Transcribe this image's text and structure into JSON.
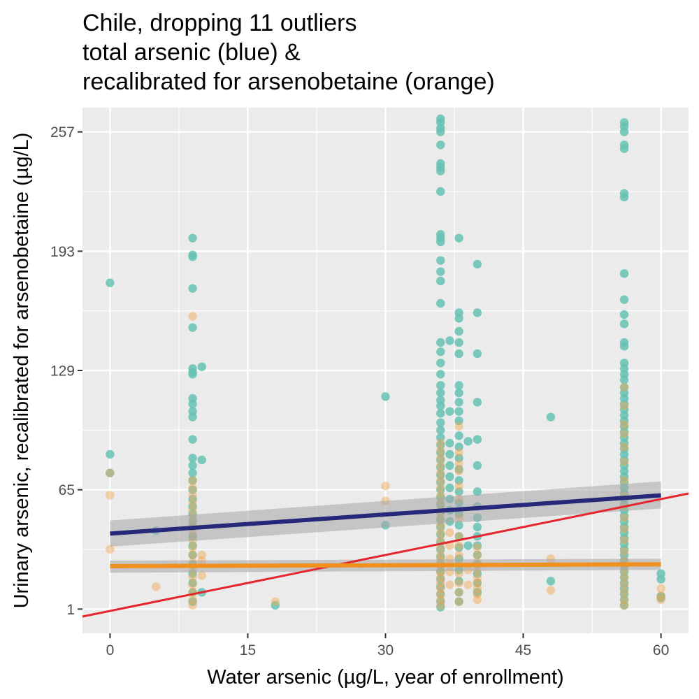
{
  "chart_data": {
    "type": "scatter",
    "title": [
      "Chile, dropping 11 outliers",
      "total arsenic (blue) &",
      "recalibrated for arsenobetaine (orange)"
    ],
    "xlabel": "Water arsenic (µg/L, year of enrollment)",
    "ylabel": "Urinary arsenic, recalibrated for arsenobetaine (µg/L)",
    "xlim": [
      -3,
      63
    ],
    "ylim": [
      -12,
      270
    ],
    "x_ticks": [
      0,
      15,
      30,
      45,
      60
    ],
    "y_ticks": [
      1,
      65,
      129,
      193,
      257
    ],
    "grid": true,
    "colors": {
      "panel": "#ebebeb",
      "grid": "#ffffff",
      "total": "#66c2b4",
      "recalibrated": "#f5a34e",
      "total_fit": "#26287a",
      "recalibrated_fit": "#f0901e",
      "ci": "#a6a6a6",
      "identity": "#e4262d"
    },
    "series": [
      {
        "name": "total arsenic",
        "points": [
          [
            0,
            176
          ],
          [
            0,
            84
          ],
          [
            0,
            74
          ],
          [
            5,
            43
          ],
          [
            9,
            200
          ],
          [
            9,
            191
          ],
          [
            9,
            190
          ],
          [
            9,
            173
          ],
          [
            9,
            152
          ],
          [
            9,
            130
          ],
          [
            9,
            128
          ],
          [
            9,
            127
          ],
          [
            9,
            114
          ],
          [
            9,
            111
          ],
          [
            9,
            107
          ],
          [
            9,
            104
          ],
          [
            9,
            92
          ],
          [
            9,
            82
          ],
          [
            9,
            78
          ],
          [
            9,
            74
          ],
          [
            9,
            70
          ],
          [
            9,
            65
          ],
          [
            9,
            60
          ],
          [
            9,
            56
          ],
          [
            9,
            52
          ],
          [
            9,
            48
          ],
          [
            9,
            45
          ],
          [
            9,
            40
          ],
          [
            9,
            35
          ],
          [
            9,
            30
          ],
          [
            9,
            25
          ],
          [
            9,
            20
          ],
          [
            9,
            15
          ],
          [
            9,
            10
          ],
          [
            9,
            5
          ],
          [
            10,
            131
          ],
          [
            10,
            81
          ],
          [
            10,
            10
          ],
          [
            18,
            3
          ],
          [
            30,
            115
          ],
          [
            30,
            46
          ],
          [
            36,
            264
          ],
          [
            36,
            262
          ],
          [
            36,
            259
          ],
          [
            36,
            257
          ],
          [
            36,
            250
          ],
          [
            36,
            240
          ],
          [
            36,
            238
          ],
          [
            36,
            236
          ],
          [
            36,
            225
          ],
          [
            36,
            202
          ],
          [
            36,
            200
          ],
          [
            36,
            198
          ],
          [
            36,
            188
          ],
          [
            36,
            182
          ],
          [
            36,
            177
          ],
          [
            36,
            165
          ],
          [
            36,
            144
          ],
          [
            36,
            139
          ],
          [
            36,
            133
          ],
          [
            36,
            127
          ],
          [
            36,
            121
          ],
          [
            36,
            117
          ],
          [
            36,
            113
          ],
          [
            36,
            110
          ],
          [
            36,
            106
          ],
          [
            36,
            101
          ],
          [
            36,
            97
          ],
          [
            36,
            93
          ],
          [
            36,
            89
          ],
          [
            36,
            85
          ],
          [
            36,
            81
          ],
          [
            36,
            77
          ],
          [
            36,
            73
          ],
          [
            36,
            69
          ],
          [
            36,
            65
          ],
          [
            36,
            61
          ],
          [
            36,
            57
          ],
          [
            36,
            53
          ],
          [
            36,
            49
          ],
          [
            36,
            45
          ],
          [
            36,
            41
          ],
          [
            36,
            37
          ],
          [
            36,
            33
          ],
          [
            36,
            29
          ],
          [
            36,
            25
          ],
          [
            36,
            21
          ],
          [
            36,
            17
          ],
          [
            36,
            13
          ],
          [
            36,
            9
          ],
          [
            36,
            5
          ],
          [
            36,
            2
          ],
          [
            37,
            145
          ],
          [
            37,
            107
          ],
          [
            37,
            90
          ],
          [
            37,
            84
          ],
          [
            37,
            78
          ],
          [
            37,
            72
          ],
          [
            37,
            66
          ],
          [
            37,
            60
          ],
          [
            37,
            54
          ],
          [
            37,
            48
          ],
          [
            38,
            200
          ],
          [
            38,
            160
          ],
          [
            38,
            157
          ],
          [
            38,
            150
          ],
          [
            38,
            144
          ],
          [
            38,
            138
          ],
          [
            38,
            121
          ],
          [
            38,
            117
          ],
          [
            38,
            112
          ],
          [
            38,
            107
          ],
          [
            38,
            102
          ],
          [
            38,
            94
          ],
          [
            38,
            88
          ],
          [
            38,
            82
          ],
          [
            38,
            76
          ],
          [
            38,
            70
          ],
          [
            38,
            64
          ],
          [
            38,
            58
          ],
          [
            38,
            52
          ],
          [
            38,
            46
          ],
          [
            38,
            40
          ],
          [
            38,
            34
          ],
          [
            38,
            28
          ],
          [
            38,
            22
          ],
          [
            38,
            16
          ],
          [
            38,
            10
          ],
          [
            38,
            5
          ],
          [
            39,
            91
          ],
          [
            39,
            35
          ],
          [
            40,
            186
          ],
          [
            40,
            160
          ],
          [
            40,
            138
          ],
          [
            40,
            112
          ],
          [
            40,
            92
          ],
          [
            40,
            78
          ],
          [
            40,
            64
          ],
          [
            40,
            56
          ],
          [
            40,
            50
          ],
          [
            40,
            45
          ],
          [
            40,
            40
          ],
          [
            40,
            35
          ],
          [
            40,
            30
          ],
          [
            40,
            25
          ],
          [
            40,
            20
          ],
          [
            40,
            15
          ],
          [
            40,
            10
          ],
          [
            48,
            104
          ],
          [
            48,
            16
          ],
          [
            56,
            262
          ],
          [
            56,
            260
          ],
          [
            56,
            257
          ],
          [
            56,
            250
          ],
          [
            56,
            248
          ],
          [
            56,
            224
          ],
          [
            56,
            222
          ],
          [
            56,
            181
          ],
          [
            56,
            167
          ],
          [
            56,
            159
          ],
          [
            56,
            154
          ],
          [
            56,
            144
          ],
          [
            56,
            142
          ],
          [
            56,
            133
          ],
          [
            56,
            130
          ],
          [
            56,
            127
          ],
          [
            56,
            124
          ],
          [
            56,
            120
          ],
          [
            56,
            117
          ],
          [
            56,
            114
          ],
          [
            56,
            111
          ],
          [
            56,
            108
          ],
          [
            56,
            105
          ],
          [
            56,
            102
          ],
          [
            56,
            99
          ],
          [
            56,
            96
          ],
          [
            56,
            93
          ],
          [
            56,
            90
          ],
          [
            56,
            87
          ],
          [
            56,
            84
          ],
          [
            56,
            81
          ],
          [
            56,
            78
          ],
          [
            56,
            75
          ],
          [
            56,
            72
          ],
          [
            56,
            69
          ],
          [
            56,
            66
          ],
          [
            56,
            63
          ],
          [
            56,
            60
          ],
          [
            56,
            57
          ],
          [
            56,
            54
          ],
          [
            56,
            51
          ],
          [
            56,
            48
          ],
          [
            56,
            45
          ],
          [
            56,
            42
          ],
          [
            56,
            39
          ],
          [
            56,
            36
          ],
          [
            56,
            33
          ],
          [
            56,
            30
          ],
          [
            56,
            27
          ],
          [
            56,
            24
          ],
          [
            56,
            21
          ],
          [
            56,
            18
          ],
          [
            56,
            15
          ],
          [
            56,
            12
          ],
          [
            56,
            9
          ],
          [
            56,
            6
          ],
          [
            56,
            3
          ],
          [
            60,
            20
          ],
          [
            60,
            17
          ],
          [
            60,
            8
          ],
          [
            60,
            7
          ]
        ]
      },
      {
        "name": "recalibrated for arsenobetaine",
        "points": [
          [
            0,
            74
          ],
          [
            0,
            62
          ],
          [
            0,
            33
          ],
          [
            5,
            13
          ],
          [
            9,
            158
          ],
          [
            9,
            70
          ],
          [
            9,
            66
          ],
          [
            9,
            62
          ],
          [
            9,
            58
          ],
          [
            9,
            54
          ],
          [
            9,
            50
          ],
          [
            9,
            46
          ],
          [
            9,
            42
          ],
          [
            9,
            38
          ],
          [
            9,
            34
          ],
          [
            9,
            30
          ],
          [
            9,
            26
          ],
          [
            9,
            22
          ],
          [
            9,
            18
          ],
          [
            9,
            14
          ],
          [
            9,
            10
          ],
          [
            9,
            6
          ],
          [
            9,
            3
          ],
          [
            10,
            30
          ],
          [
            10,
            27
          ],
          [
            10,
            19
          ],
          [
            18,
            5
          ],
          [
            30,
            67
          ],
          [
            30,
            59
          ],
          [
            36,
            90
          ],
          [
            36,
            86
          ],
          [
            36,
            82
          ],
          [
            36,
            78
          ],
          [
            36,
            74
          ],
          [
            36,
            70
          ],
          [
            36,
            66
          ],
          [
            36,
            62
          ],
          [
            36,
            58
          ],
          [
            36,
            54
          ],
          [
            36,
            50
          ],
          [
            36,
            46
          ],
          [
            36,
            42
          ],
          [
            36,
            38
          ],
          [
            36,
            34
          ],
          [
            36,
            30
          ],
          [
            36,
            27
          ],
          [
            36,
            24
          ],
          [
            36,
            21
          ],
          [
            36,
            18
          ],
          [
            36,
            15
          ],
          [
            36,
            12
          ],
          [
            36,
            9
          ],
          [
            36,
            6
          ],
          [
            36,
            3
          ],
          [
            37,
            42
          ],
          [
            37,
            35
          ],
          [
            37,
            28
          ],
          [
            37,
            21
          ],
          [
            37,
            14
          ],
          [
            38,
            99
          ],
          [
            38,
            85
          ],
          [
            38,
            79
          ],
          [
            38,
            75
          ],
          [
            38,
            67
          ],
          [
            38,
            60
          ],
          [
            38,
            50
          ],
          [
            38,
            40
          ],
          [
            38,
            35
          ],
          [
            38,
            30
          ],
          [
            38,
            25
          ],
          [
            38,
            20
          ],
          [
            38,
            15
          ],
          [
            38,
            10
          ],
          [
            38,
            5
          ],
          [
            39,
            22
          ],
          [
            39,
            14
          ],
          [
            40,
            34
          ],
          [
            40,
            30
          ],
          [
            40,
            26
          ],
          [
            40,
            22
          ],
          [
            40,
            18
          ],
          [
            40,
            15
          ],
          [
            40,
            12
          ],
          [
            40,
            9
          ],
          [
            40,
            6
          ],
          [
            48,
            28
          ],
          [
            48,
            11
          ],
          [
            56,
            120
          ],
          [
            56,
            110
          ],
          [
            56,
            100
          ],
          [
            56,
            95
          ],
          [
            56,
            88
          ],
          [
            56,
            80
          ],
          [
            56,
            70
          ],
          [
            56,
            62
          ],
          [
            56,
            56
          ],
          [
            56,
            50
          ],
          [
            56,
            44
          ],
          [
            56,
            38
          ],
          [
            56,
            32
          ],
          [
            56,
            27
          ],
          [
            56,
            22
          ],
          [
            56,
            18
          ],
          [
            56,
            14
          ],
          [
            56,
            10
          ],
          [
            56,
            6
          ],
          [
            56,
            3
          ],
          [
            60,
            12
          ],
          [
            60,
            8
          ],
          [
            60,
            6
          ]
        ]
      }
    ],
    "fits": [
      {
        "name": "total arsenic fit",
        "x": [
          0,
          60
        ],
        "y": [
          41.5,
          62
        ],
        "ci_upper": [
          48.5,
          69.5
        ],
        "ci_lower": [
          34.5,
          55
        ]
      },
      {
        "name": "recalibrated fit",
        "x": [
          0,
          60
        ],
        "y": [
          24,
          25
        ],
        "ci_upper": [
          27,
          28
        ],
        "ci_lower": [
          20.5,
          22
        ]
      }
    ],
    "identity_line": {
      "x": [
        -3,
        63
      ],
      "y": [
        -3,
        63
      ]
    }
  }
}
